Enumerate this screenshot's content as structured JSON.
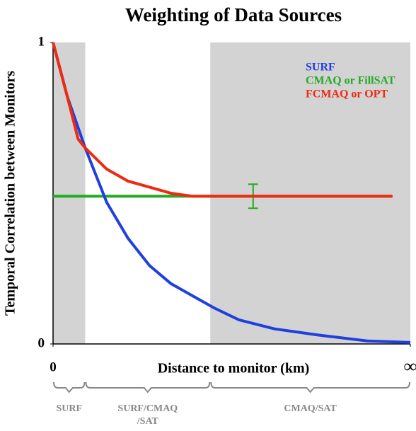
{
  "chart_data": {
    "type": "line",
    "title": "Weighting of Data Sources",
    "x_label": "Distance to monitor (km)",
    "y_label": "Temporal Correlation between Monitors",
    "xlim": [
      0,
      1
    ],
    "ylim": [
      0,
      1
    ],
    "xticks": [
      0,
      {
        "value": 1,
        "label": "∞"
      }
    ],
    "yticks": [
      0,
      1
    ],
    "shaded_regions": [
      [
        0,
        0.09
      ],
      [
        0.44,
        1
      ]
    ],
    "shade_color": "#d3d3d3",
    "series": [
      {
        "name": "SURF",
        "color": "#1f3fe0",
        "x": [
          0,
          0.04,
          0.09,
          0.15,
          0.21,
          0.27,
          0.33,
          0.39,
          0.45,
          0.52,
          0.62,
          0.74,
          0.88,
          1
        ],
        "values": [
          1,
          0.82,
          0.65,
          0.47,
          0.35,
          0.26,
          0.2,
          0.16,
          0.12,
          0.08,
          0.05,
          0.03,
          0.01,
          0.005
        ]
      },
      {
        "name": "CMAQ or FillSAT",
        "color": "#22aa22",
        "x": [
          0,
          0.95
        ],
        "values": [
          0.49,
          0.49
        ],
        "error_x": 0.56,
        "error_value": 0.49,
        "error": 0.04
      },
      {
        "name": "FCMAQ or OPT",
        "color": "#ee2a10",
        "x": [
          0,
          0.04,
          0.07,
          0.09,
          0.15,
          0.21,
          0.27,
          0.33,
          0.39,
          0.45,
          0.95
        ],
        "values": [
          1,
          0.82,
          0.68,
          0.65,
          0.58,
          0.54,
          0.52,
          0.5,
          0.49,
          0.49,
          0.49
        ]
      }
    ],
    "zones": [
      {
        "label": [
          "SURF"
        ],
        "range": [
          0,
          0.09
        ]
      },
      {
        "label": [
          "SURF/CMAQ",
          "/SAT"
        ],
        "range": [
          0.09,
          0.44
        ]
      },
      {
        "label": [
          "CMAQ/SAT"
        ],
        "range": [
          0.44,
          1
        ]
      }
    ]
  }
}
